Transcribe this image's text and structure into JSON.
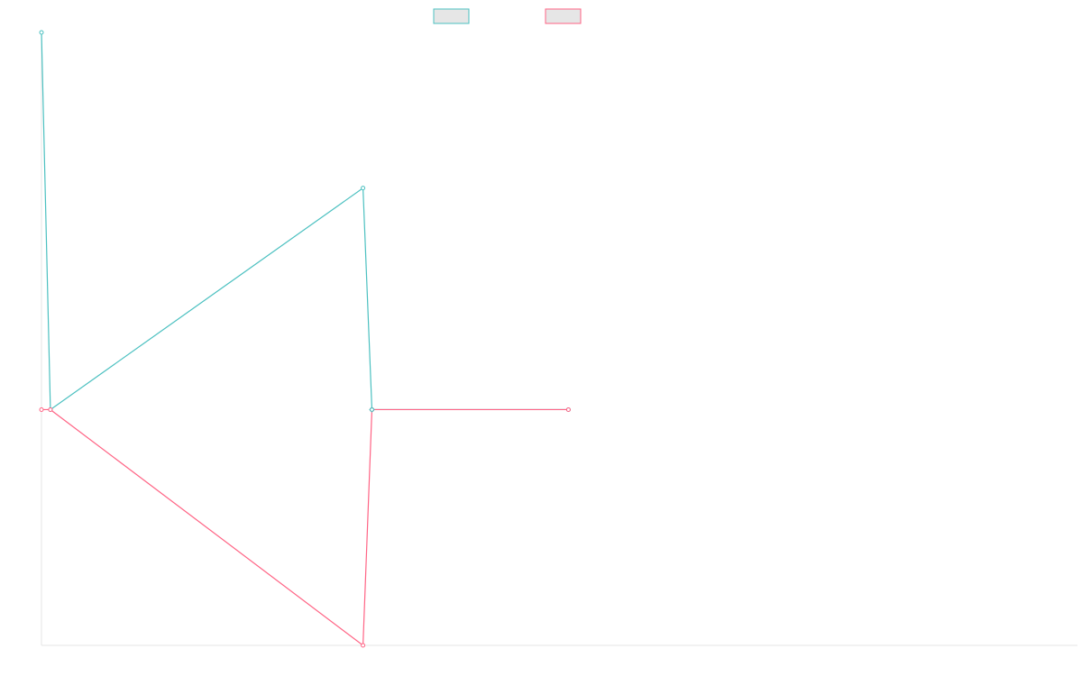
{
  "chart_data": {
    "type": "line",
    "title": "",
    "xlabel": "",
    "ylabel": "",
    "x_count": 60,
    "ylim": [
      -0.5,
      0.8
    ],
    "grid": false,
    "legend_position": "top-center",
    "series": [
      {
        "name": "",
        "color": "#4bc0c0",
        "fill": "rgba(75,192,192,0.2)",
        "points": [
          [
            0,
            0.8
          ],
          [
            1,
            0
          ],
          [
            36,
            0.47
          ],
          [
            37,
            0
          ],
          [
            59,
            0
          ]
        ]
      },
      {
        "name": "",
        "color": "#ff6384",
        "fill": "rgba(255,99,132,0.2)",
        "points": [
          [
            0,
            0
          ],
          [
            1,
            0
          ],
          [
            36,
            -0.5
          ],
          [
            37,
            0
          ],
          [
            59,
            0
          ]
        ]
      }
    ]
  }
}
